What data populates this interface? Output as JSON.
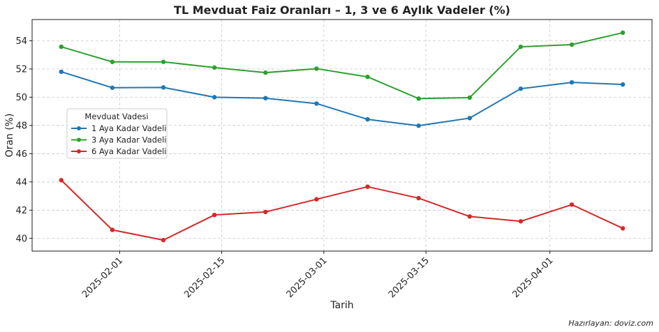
{
  "chart_data": {
    "type": "line",
    "title": "TL Mevduat Faiz Oranları – 1, 3 ve 6 Aylık Vadeler (%)",
    "xlabel": "Tarih",
    "ylabel": "Oran (%)",
    "x": [
      "2025-01-24",
      "2025-01-31",
      "2025-02-07",
      "2025-02-14",
      "2025-02-21",
      "2025-02-28",
      "2025-03-07",
      "2025-03-14",
      "2025-03-21",
      "2025-03-28",
      "2025-04-04",
      "2025-04-11"
    ],
    "x_ticks": [
      "2025-02-01",
      "2025-02-15",
      "2025-03-01",
      "2025-03-15",
      "2025-04-01"
    ],
    "y_ticks": [
      40,
      42,
      44,
      46,
      48,
      50,
      52,
      54
    ],
    "ylim": [
      39.1,
      55.5
    ],
    "xlim": [
      "2025-01-20",
      "2025-04-15"
    ],
    "grid": true,
    "legend_title": "Mevduat Vadesi",
    "legend_position": "center-left",
    "series": [
      {
        "name": "1 Aya Kadar Vadeli",
        "color": "#1f77b4",
        "values": [
          51.8,
          50.67,
          50.69,
          50.0,
          49.93,
          49.55,
          48.43,
          47.98,
          48.52,
          50.6,
          51.05,
          50.9
        ]
      },
      {
        "name": "3 Aya Kadar Vadeli",
        "color": "#2ca02c",
        "values": [
          53.57,
          52.5,
          52.5,
          52.1,
          51.74,
          52.02,
          51.44,
          49.9,
          49.97,
          53.57,
          53.72,
          54.57
        ]
      },
      {
        "name": "6 Aya Kadar Vadeli",
        "color": "#d62728",
        "values": [
          44.12,
          40.6,
          39.88,
          41.66,
          41.87,
          42.77,
          43.66,
          42.85,
          41.55,
          41.21,
          42.39,
          40.71
        ]
      }
    ]
  },
  "credit": "Hazırlayan: doviz.com"
}
